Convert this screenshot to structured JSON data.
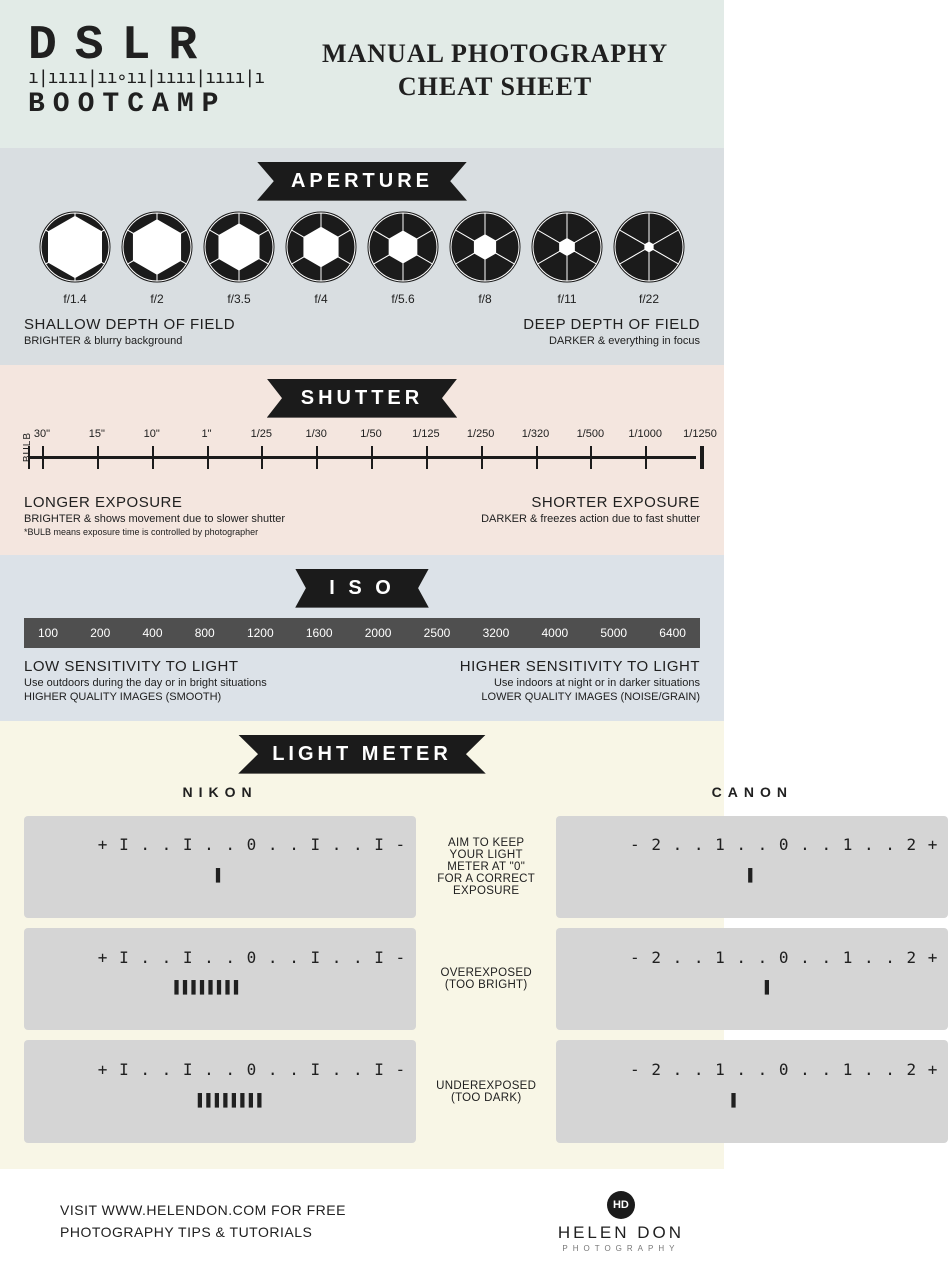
{
  "colors": {
    "header_bg": "#e2ebe7",
    "aperture_bg": "#d9dee1",
    "shutter_bg": "#f4e6df",
    "iso_bg": "#dce2e8",
    "lightmeter_bg": "#f8f6e6",
    "ribbon_bg": "#1b1b1b",
    "iso_bar_bg": "#4f4f4f",
    "meter_bg": "#d5d5d5",
    "text": "#202020"
  },
  "header": {
    "logo_top": "DSLR",
    "logo_ruler": "ı|ıııı|ıı∘ıı|ıııı|ıııı|ı",
    "logo_bottom": "BOOTCAMP",
    "title_line1": "MANUAL PHOTOGRAPHY",
    "title_line2": "CHEAT SHEET"
  },
  "aperture": {
    "ribbon": "APERTURE",
    "items": [
      {
        "label": "f/1.4",
        "opening": 0.9
      },
      {
        "label": "f/2",
        "opening": 0.8
      },
      {
        "label": "f/3.5",
        "opening": 0.68
      },
      {
        "label": "f/4",
        "opening": 0.58
      },
      {
        "label": "f/5.6",
        "opening": 0.47
      },
      {
        "label": "f/8",
        "opening": 0.36
      },
      {
        "label": "f/11",
        "opening": 0.25
      },
      {
        "label": "f/22",
        "opening": 0.14
      }
    ],
    "left_head": "SHALLOW DEPTH OF FIELD",
    "left_sub": "BRIGHTER & blurry background",
    "right_head": "DEEP DEPTH OF FIELD",
    "right_sub": "DARKER & everything in focus"
  },
  "shutter": {
    "ribbon": "SHUTTER",
    "bulb": "BULB",
    "values": [
      "30\"",
      "15\"",
      "10\"",
      "1\"",
      "1/25",
      "1/30",
      "1/50",
      "1/125",
      "1/250",
      "1/320",
      "1/500",
      "1/1000",
      "1/1250"
    ],
    "left_head": "LONGER EXPOSURE",
    "left_sub": "BRIGHTER & shows movement due to slower shutter",
    "left_note": "*BULB means exposure time is controlled by photographer",
    "right_head": "SHORTER EXPOSURE",
    "right_sub": "DARKER & freezes action due to fast shutter"
  },
  "iso": {
    "ribbon": "I S O",
    "values": [
      "100",
      "200",
      "400",
      "800",
      "1200",
      "1600",
      "2000",
      "2500",
      "3200",
      "4000",
      "5000",
      "6400"
    ],
    "left_head": "LOW SENSITIVITY TO LIGHT",
    "left_sub": "Use outdoors during the day or in bright situations",
    "left_sub2": "HIGHER QUALITY IMAGES (SMOOTH)",
    "right_head": "HIGHER SENSITIVITY TO LIGHT",
    "right_sub": "Use indoors at night or in darker situations",
    "right_sub2": "LOWER QUALITY IMAGES (NOISE/GRAIN)"
  },
  "lightmeter": {
    "ribbon": "LIGHT METER",
    "brand_left": "NIKON",
    "brand_right": "CANON",
    "center1": "AIM TO KEEP YOUR LIGHT METER AT \"0\" FOR A CORRECT EXPOSURE",
    "center2": "OVEREXPOSED (TOO BRIGHT)",
    "center3": "UNDEREXPOSED (TOO DARK)",
    "nikon_scale": "+ I . . I . . 0 . . I . . I -",
    "canon_scale": "- 2 . . 1 . . 0 . . 1 . . 2 +",
    "indicators": {
      "nikon_correct": "        ▌        ",
      "nikon_over": " ▌▌▌▌▌▌▌▌        ",
      "nikon_under": "        ▌▌▌▌▌▌▌▌ ",
      "canon_correct": "        ▌        ",
      "canon_over": "             ▌   ",
      "canon_under": "   ▌             "
    }
  },
  "footer": {
    "line1": "VISIT WWW.HELENDON.COM FOR FREE",
    "line2": "PHOTOGRAPHY TIPS & TUTORIALS",
    "logo_mark": "HD",
    "logo_name": "HELEN DON",
    "logo_sub": "PHOTOGRAPHY"
  }
}
